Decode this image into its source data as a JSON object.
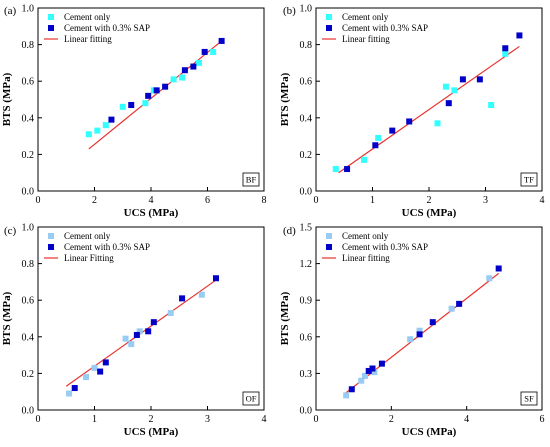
{
  "colors": {
    "cement_only_light": "#33ffff",
    "cement_only_pale": "#99ccf5",
    "sap": "#0000c8",
    "fit_line": "#e8312d",
    "frame": "#000000"
  },
  "chart_data": [
    {
      "type": "scatter",
      "panel_label": "(a)",
      "corner_label": "BF",
      "xlabel": "UCS (MPa)",
      "ylabel": "BTS (MPa)",
      "xlim": [
        0,
        8
      ],
      "ylim": [
        0.0,
        1.0
      ],
      "xticks": [
        "0",
        "2",
        "4",
        "6",
        "8"
      ],
      "yticks": [
        "0.0",
        "0.2",
        "0.4",
        "0.6",
        "0.8",
        "1.0"
      ],
      "legend_position": "top-left",
      "series": [
        {
          "name": "Cement only",
          "marker": "square",
          "color": "#33ffff",
          "points": [
            [
              1.8,
              0.31
            ],
            [
              2.1,
              0.33
            ],
            [
              2.4,
              0.36
            ],
            [
              3.0,
              0.46
            ],
            [
              3.8,
              0.48
            ],
            [
              4.1,
              0.55
            ],
            [
              4.8,
              0.61
            ],
            [
              5.1,
              0.62
            ],
            [
              5.7,
              0.7
            ],
            [
              6.2,
              0.76
            ]
          ]
        },
        {
          "name": "Cement with 0.3% SAP",
          "marker": "square",
          "color": "#0000c8",
          "points": [
            [
              2.6,
              0.39
            ],
            [
              3.3,
              0.47
            ],
            [
              3.9,
              0.52
            ],
            [
              4.2,
              0.55
            ],
            [
              4.5,
              0.57
            ],
            [
              5.2,
              0.66
            ],
            [
              5.5,
              0.68
            ],
            [
              5.9,
              0.76
            ],
            [
              6.5,
              0.82
            ]
          ]
        },
        {
          "name": "Linear fitting",
          "kind": "line",
          "color": "#e8312d",
          "points": [
            [
              1.8,
              0.23
            ],
            [
              6.5,
              0.82
            ]
          ]
        }
      ]
    },
    {
      "type": "scatter",
      "panel_label": "(b)",
      "corner_label": "TF",
      "xlabel": "UCS (MPa)",
      "ylabel": "BTS (MPa)",
      "xlim": [
        0,
        4
      ],
      "ylim": [
        0.0,
        1.0
      ],
      "xticks": [
        "0",
        "1",
        "2",
        "3",
        "4"
      ],
      "yticks": [
        "0.0",
        "0.2",
        "0.4",
        "0.6",
        "0.8",
        "1.0"
      ],
      "legend_position": "top-left",
      "series": [
        {
          "name": "Cement only",
          "marker": "square",
          "color": "#33ffff",
          "points": [
            [
              0.35,
              0.12
            ],
            [
              0.85,
              0.17
            ],
            [
              1.1,
              0.29
            ],
            [
              2.15,
              0.37
            ],
            [
              2.3,
              0.57
            ],
            [
              2.45,
              0.55
            ],
            [
              3.1,
              0.47
            ],
            [
              3.35,
              0.75
            ]
          ]
        },
        {
          "name": "Cement with 0.3% SAP",
          "marker": "square",
          "color": "#0000c8",
          "points": [
            [
              0.55,
              0.12
            ],
            [
              1.05,
              0.25
            ],
            [
              1.35,
              0.33
            ],
            [
              1.65,
              0.38
            ],
            [
              2.35,
              0.48
            ],
            [
              2.6,
              0.61
            ],
            [
              2.9,
              0.61
            ],
            [
              3.35,
              0.78
            ],
            [
              3.6,
              0.85
            ]
          ]
        },
        {
          "name": "Linear fitting",
          "kind": "line",
          "color": "#e8312d",
          "points": [
            [
              0.4,
              0.1
            ],
            [
              3.6,
              0.79
            ]
          ]
        }
      ]
    },
    {
      "type": "scatter",
      "panel_label": "(c)",
      "corner_label": "OF",
      "xlabel": "UCS (MPa)",
      "ylabel": "BTS (MPa)",
      "xlim": [
        0,
        4
      ],
      "ylim": [
        0.0,
        1.0
      ],
      "xticks": [
        "0",
        "1",
        "2",
        "3",
        "4"
      ],
      "yticks": [
        "0.0",
        "0.2",
        "0.4",
        "0.6",
        "0.8",
        "1.0"
      ],
      "legend_position": "top-left",
      "series": [
        {
          "name": "Cement only",
          "marker": "square",
          "color": "#99ccf5",
          "points": [
            [
              0.55,
              0.09
            ],
            [
              0.85,
              0.18
            ],
            [
              1.0,
              0.23
            ],
            [
              1.55,
              0.39
            ],
            [
              1.65,
              0.36
            ],
            [
              1.8,
              0.43
            ],
            [
              2.35,
              0.53
            ],
            [
              2.9,
              0.63
            ]
          ]
        },
        {
          "name": "Cement with 0.3% SAP",
          "marker": "square",
          "color": "#0000c8",
          "points": [
            [
              0.65,
              0.12
            ],
            [
              1.1,
              0.21
            ],
            [
              1.2,
              0.26
            ],
            [
              1.75,
              0.41
            ],
            [
              1.95,
              0.43
            ],
            [
              2.05,
              0.48
            ],
            [
              2.55,
              0.61
            ],
            [
              3.15,
              0.72
            ]
          ]
        },
        {
          "name": "Linear Fitting",
          "kind": "line",
          "color": "#e8312d",
          "points": [
            [
              0.5,
              0.13
            ],
            [
              3.15,
              0.71
            ]
          ]
        }
      ]
    },
    {
      "type": "scatter",
      "panel_label": "(d)",
      "corner_label": "SF",
      "xlabel": "UCS (MPa)",
      "ylabel": "BTS (MPa)",
      "xlim": [
        0,
        6
      ],
      "ylim": [
        0.0,
        1.5
      ],
      "xticks": [
        "0",
        "2",
        "4",
        "6"
      ],
      "yticks": [
        "0.0",
        "0.3",
        "0.6",
        "0.9",
        "1.2",
        "1.5"
      ],
      "legend_position": "top-left",
      "series": [
        {
          "name": "Cement only",
          "marker": "square",
          "color": "#99ccf5",
          "points": [
            [
              0.8,
              0.12
            ],
            [
              1.2,
              0.24
            ],
            [
              1.3,
              0.28
            ],
            [
              1.55,
              0.31
            ],
            [
              2.5,
              0.58
            ],
            [
              2.75,
              0.65
            ],
            [
              3.6,
              0.83
            ],
            [
              4.6,
              1.08
            ]
          ]
        },
        {
          "name": "Cement with 0.3% SAP",
          "marker": "square",
          "color": "#0000c8",
          "points": [
            [
              0.95,
              0.17
            ],
            [
              1.4,
              0.32
            ],
            [
              1.5,
              0.34
            ],
            [
              1.75,
              0.38
            ],
            [
              2.75,
              0.62
            ],
            [
              3.1,
              0.72
            ],
            [
              3.8,
              0.87
            ],
            [
              4.85,
              1.16
            ]
          ]
        },
        {
          "name": "Linear fitting",
          "kind": "line",
          "color": "#e8312d",
          "points": [
            [
              0.75,
              0.13
            ],
            [
              4.85,
              1.12
            ]
          ]
        }
      ]
    }
  ]
}
